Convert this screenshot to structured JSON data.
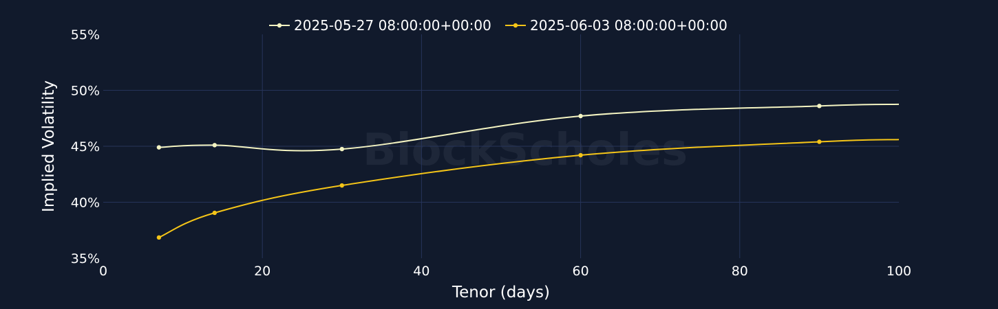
{
  "watermark": "BlockScholes",
  "chart_data": {
    "type": "line",
    "xlabel": "Tenor (days)",
    "ylabel": "Implied Volatility",
    "xlim": [
      0,
      100
    ],
    "ylim": [
      35,
      55
    ],
    "x_ticks": [
      0,
      20,
      40,
      60,
      80,
      100
    ],
    "y_ticks": [
      35,
      40,
      45,
      50,
      55
    ],
    "y_tick_suffix": "%",
    "grid": true,
    "legend_position": "top-center",
    "colors": {
      "background": "#111a2c",
      "grid": "#26345a"
    },
    "series": [
      {
        "name": "2025-05-27 08:00:00+00:00",
        "color": "#f4f4c2",
        "points": [
          {
            "x": 7,
            "y": 44.9
          },
          {
            "x": 14,
            "y": 45.1
          },
          {
            "x": 30,
            "y": 44.75
          },
          {
            "x": 60,
            "y": 47.7
          },
          {
            "x": 90,
            "y": 48.6
          }
        ],
        "line_extends_to": {
          "x": 100,
          "y": 48.75
        }
      },
      {
        "name": "2025-06-03 08:00:00+00:00",
        "color": "#f5c518",
        "points": [
          {
            "x": 7,
            "y": 36.85
          },
          {
            "x": 14,
            "y": 39.05
          },
          {
            "x": 30,
            "y": 41.5
          },
          {
            "x": 60,
            "y": 44.2
          },
          {
            "x": 90,
            "y": 45.4
          }
        ],
        "line_extends_to": {
          "x": 100,
          "y": 45.6
        }
      }
    ]
  }
}
